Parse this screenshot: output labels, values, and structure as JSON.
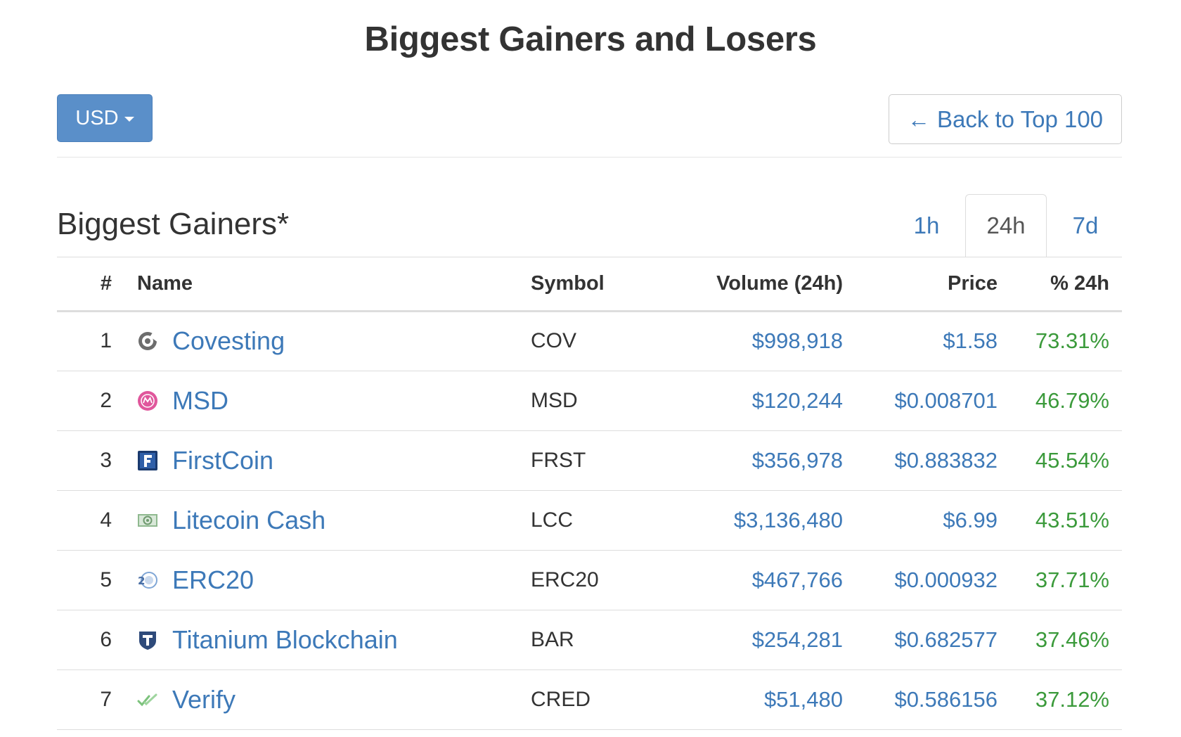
{
  "page": {
    "title": "Biggest Gainers and Losers"
  },
  "toolbar": {
    "currency_label": "USD",
    "back_arrow": "←",
    "back_label": "Back to Top 100"
  },
  "section": {
    "title": "Biggest Gainers*",
    "tabs": [
      {
        "label": "1h",
        "active": false
      },
      {
        "label": "24h",
        "active": true
      },
      {
        "label": "7d",
        "active": false
      }
    ]
  },
  "table": {
    "headers": {
      "rank": "#",
      "name": "Name",
      "symbol": "Symbol",
      "volume": "Volume (24h)",
      "price": "Price",
      "change": "% 24h"
    },
    "rows": [
      {
        "rank": "1",
        "icon": "covesting-icon",
        "name": "Covesting",
        "symbol": "COV",
        "volume": "$998,918",
        "price": "$1.58",
        "change": "73.31%"
      },
      {
        "rank": "2",
        "icon": "msd-icon",
        "name": "MSD",
        "symbol": "MSD",
        "volume": "$120,244",
        "price": "$0.008701",
        "change": "46.79%"
      },
      {
        "rank": "3",
        "icon": "firstcoin-icon",
        "name": "FirstCoin",
        "symbol": "FRST",
        "volume": "$356,978",
        "price": "$0.883832",
        "change": "45.54%"
      },
      {
        "rank": "4",
        "icon": "litecoin-cash-icon",
        "name": "Litecoin Cash",
        "symbol": "LCC",
        "volume": "$3,136,480",
        "price": "$6.99",
        "change": "43.51%"
      },
      {
        "rank": "5",
        "icon": "erc20-icon",
        "name": "ERC20",
        "symbol": "ERC20",
        "volume": "$467,766",
        "price": "$0.000932",
        "change": "37.71%"
      },
      {
        "rank": "6",
        "icon": "titanium-blockchain-icon",
        "name": "Titanium Blockchain",
        "symbol": "BAR",
        "volume": "$254,281",
        "price": "$0.682577",
        "change": "37.46%"
      },
      {
        "rank": "7",
        "icon": "verify-icon",
        "name": "Verify",
        "symbol": "CRED",
        "volume": "$51,480",
        "price": "$0.586156",
        "change": "37.12%"
      }
    ]
  },
  "colors": {
    "link": "#3d79b8",
    "positive": "#3b9a3b",
    "button": "#5a8fc9"
  }
}
